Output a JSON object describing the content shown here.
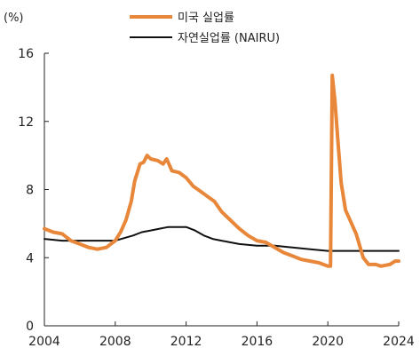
{
  "chart_data": {
    "type": "line",
    "unit": "(%)",
    "ylim": [
      0,
      16
    ],
    "yticks": [
      0,
      4,
      8,
      12,
      16
    ],
    "xlim": [
      2004,
      2024
    ],
    "xticks": [
      2004,
      2008,
      2012,
      2016,
      2020,
      2024
    ],
    "grid": false,
    "legend_position": "top",
    "series": [
      {
        "name": "미국 실업률",
        "color": "#e8873a",
        "points": [
          [
            2004.0,
            5.7
          ],
          [
            2004.5,
            5.5
          ],
          [
            2005.0,
            5.4
          ],
          [
            2005.5,
            5.0
          ],
          [
            2006.0,
            4.8
          ],
          [
            2006.5,
            4.6
          ],
          [
            2007.0,
            4.5
          ],
          [
            2007.5,
            4.6
          ],
          [
            2008.0,
            5.0
          ],
          [
            2008.3,
            5.5
          ],
          [
            2008.6,
            6.2
          ],
          [
            2008.9,
            7.3
          ],
          [
            2009.1,
            8.5
          ],
          [
            2009.4,
            9.5
          ],
          [
            2009.6,
            9.6
          ],
          [
            2009.8,
            10.0
          ],
          [
            2010.0,
            9.8
          ],
          [
            2010.4,
            9.7
          ],
          [
            2010.7,
            9.5
          ],
          [
            2010.9,
            9.8
          ],
          [
            2011.2,
            9.1
          ],
          [
            2011.6,
            9.0
          ],
          [
            2012.0,
            8.7
          ],
          [
            2012.4,
            8.2
          ],
          [
            2012.8,
            7.9
          ],
          [
            2013.2,
            7.6
          ],
          [
            2013.6,
            7.3
          ],
          [
            2014.0,
            6.7
          ],
          [
            2014.5,
            6.2
          ],
          [
            2015.0,
            5.7
          ],
          [
            2015.5,
            5.3
          ],
          [
            2016.0,
            5.0
          ],
          [
            2016.5,
            4.9
          ],
          [
            2017.0,
            4.6
          ],
          [
            2017.5,
            4.3
          ],
          [
            2018.0,
            4.1
          ],
          [
            2018.5,
            3.9
          ],
          [
            2019.0,
            3.8
          ],
          [
            2019.5,
            3.7
          ],
          [
            2020.0,
            3.5
          ],
          [
            2020.15,
            3.5
          ],
          [
            2020.25,
            14.7
          ],
          [
            2020.4,
            13.2
          ],
          [
            2020.55,
            11.1
          ],
          [
            2020.75,
            8.4
          ],
          [
            2021.0,
            6.8
          ],
          [
            2021.3,
            6.1
          ],
          [
            2021.6,
            5.4
          ],
          [
            2021.8,
            4.7
          ],
          [
            2022.0,
            4.0
          ],
          [
            2022.3,
            3.6
          ],
          [
            2022.7,
            3.6
          ],
          [
            2023.0,
            3.5
          ],
          [
            2023.5,
            3.6
          ],
          [
            2023.8,
            3.8
          ],
          [
            2024.0,
            3.8
          ]
        ]
      },
      {
        "name": "자연실업률 (NAIRU)",
        "color": "#111111",
        "points": [
          [
            2004.0,
            5.1
          ],
          [
            2005.0,
            5.0
          ],
          [
            2006.0,
            5.0
          ],
          [
            2007.0,
            5.0
          ],
          [
            2008.0,
            5.0
          ],
          [
            2009.0,
            5.3
          ],
          [
            2009.5,
            5.5
          ],
          [
            2010.0,
            5.6
          ],
          [
            2010.5,
            5.7
          ],
          [
            2011.0,
            5.8
          ],
          [
            2011.5,
            5.8
          ],
          [
            2012.0,
            5.8
          ],
          [
            2012.5,
            5.6
          ],
          [
            2013.0,
            5.3
          ],
          [
            2013.5,
            5.1
          ],
          [
            2014.0,
            5.0
          ],
          [
            2014.5,
            4.9
          ],
          [
            2015.0,
            4.8
          ],
          [
            2016.0,
            4.7
          ],
          [
            2017.0,
            4.7
          ],
          [
            2018.0,
            4.6
          ],
          [
            2019.0,
            4.5
          ],
          [
            2020.0,
            4.4
          ],
          [
            2020.5,
            4.4
          ],
          [
            2021.0,
            4.4
          ],
          [
            2022.0,
            4.4
          ],
          [
            2023.0,
            4.4
          ],
          [
            2024.0,
            4.4
          ]
        ]
      }
    ]
  }
}
